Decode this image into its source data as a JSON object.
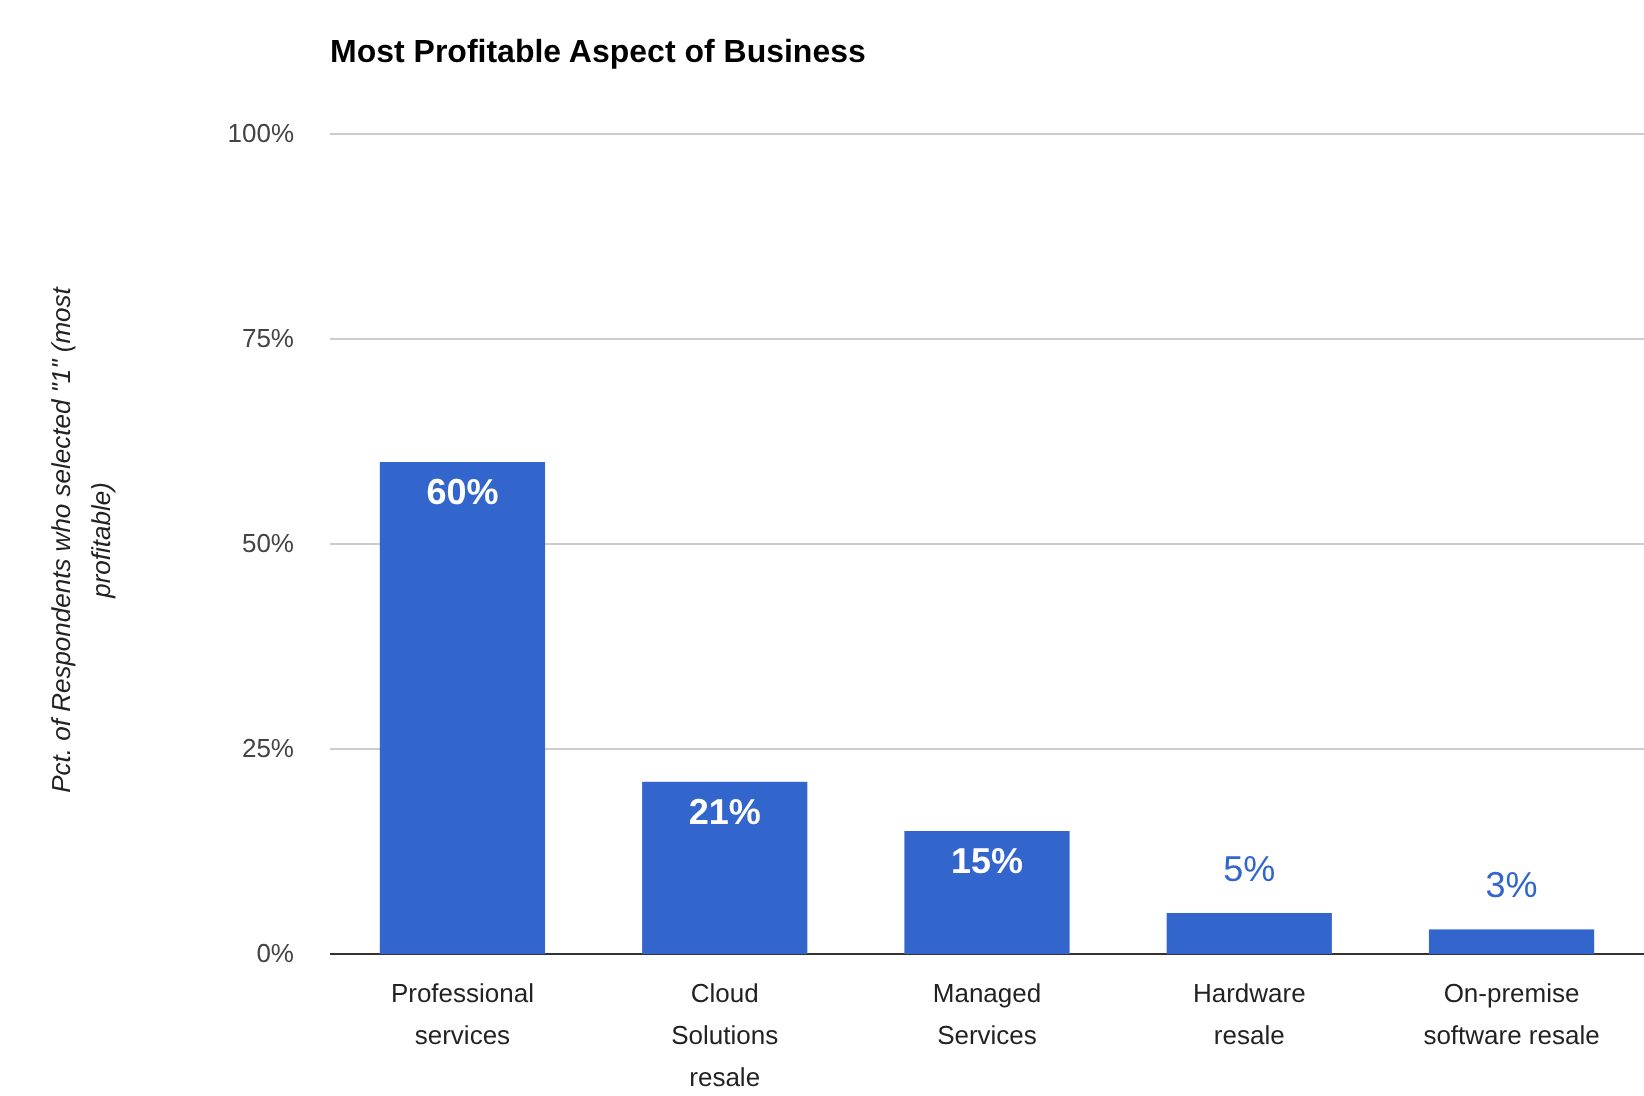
{
  "chart_data": {
    "type": "bar",
    "title": "Most Profitable Aspect of Business",
    "ylabel": "Pct. of Respondents who selected \"1\" (most profitable)",
    "categories": [
      "Professional services",
      "Cloud Solutions resale",
      "Managed Services",
      "Hardware resale",
      "On-premise software resale"
    ],
    "values": [
      60,
      21,
      15,
      5,
      3
    ],
    "value_labels": [
      "60%",
      "21%",
      "15%",
      "5%",
      "3%"
    ],
    "color": "#3366cc",
    "ylim": [
      0,
      100
    ],
    "yticks": [
      {
        "value": 0,
        "label": "0%"
      },
      {
        "value": 25,
        "label": "25%"
      },
      {
        "value": 50,
        "label": "50%"
      },
      {
        "value": 75,
        "label": "75%"
      },
      {
        "value": 100,
        "label": "100%"
      }
    ],
    "grid": "y"
  }
}
